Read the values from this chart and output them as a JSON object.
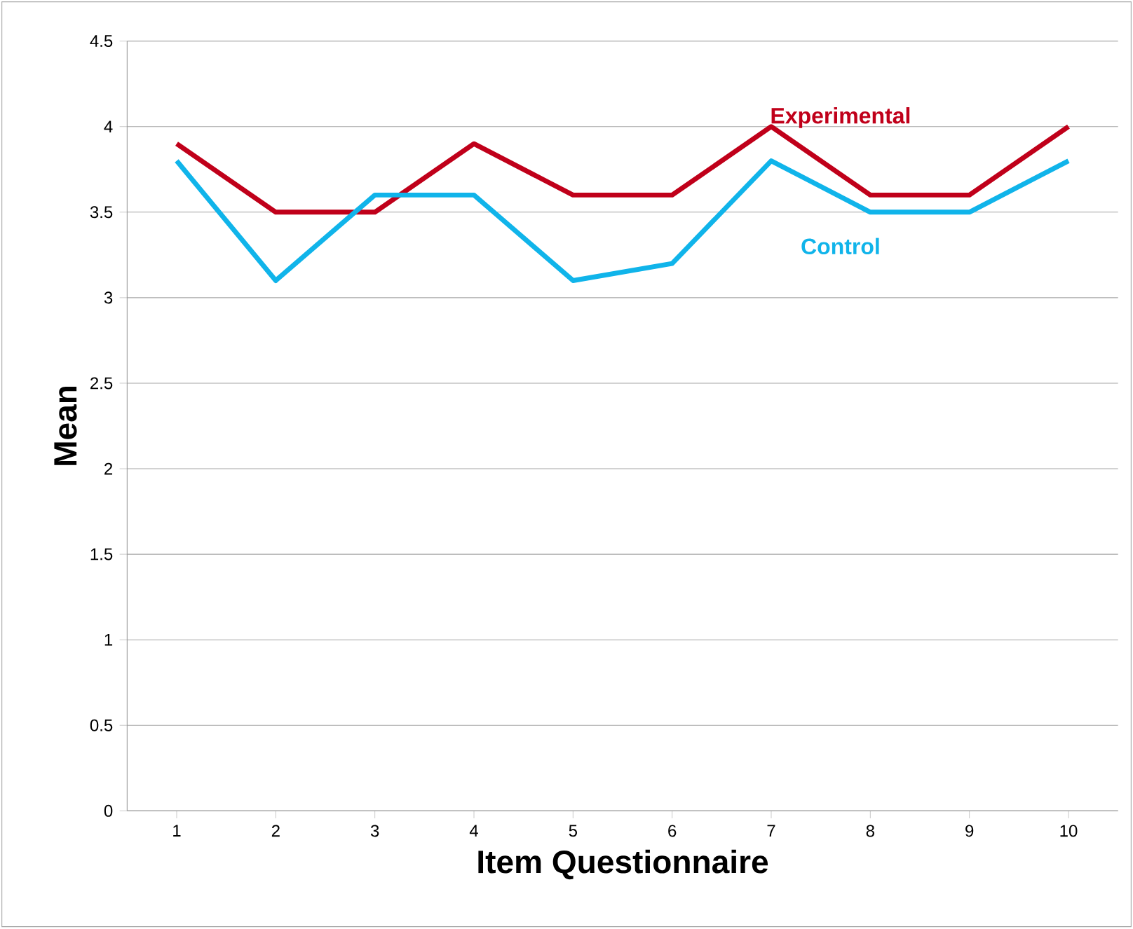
{
  "chart_data": {
    "type": "line",
    "xlabel": "Item Questionnaire",
    "ylabel": "Mean",
    "categories": [
      "1",
      "2",
      "3",
      "4",
      "5",
      "6",
      "7",
      "8",
      "9",
      "10"
    ],
    "series": [
      {
        "name": "Experimental",
        "color": "#c0001a",
        "values": [
          3.9,
          3.5,
          3.5,
          3.9,
          3.6,
          3.6,
          4.0,
          3.6,
          3.6,
          4.0
        ]
      },
      {
        "name": "Control",
        "color": "#10b4ea",
        "values": [
          3.8,
          3.1,
          3.6,
          3.6,
          3.1,
          3.2,
          3.8,
          3.5,
          3.5,
          3.8
        ]
      }
    ],
    "ylim": [
      0,
      4.5
    ],
    "yticks": [
      0,
      0.5,
      1,
      1.5,
      2,
      2.5,
      3,
      3.5,
      4,
      4.5
    ],
    "grid": "y",
    "legend": false,
    "marker": "none",
    "line_style": "solid"
  }
}
